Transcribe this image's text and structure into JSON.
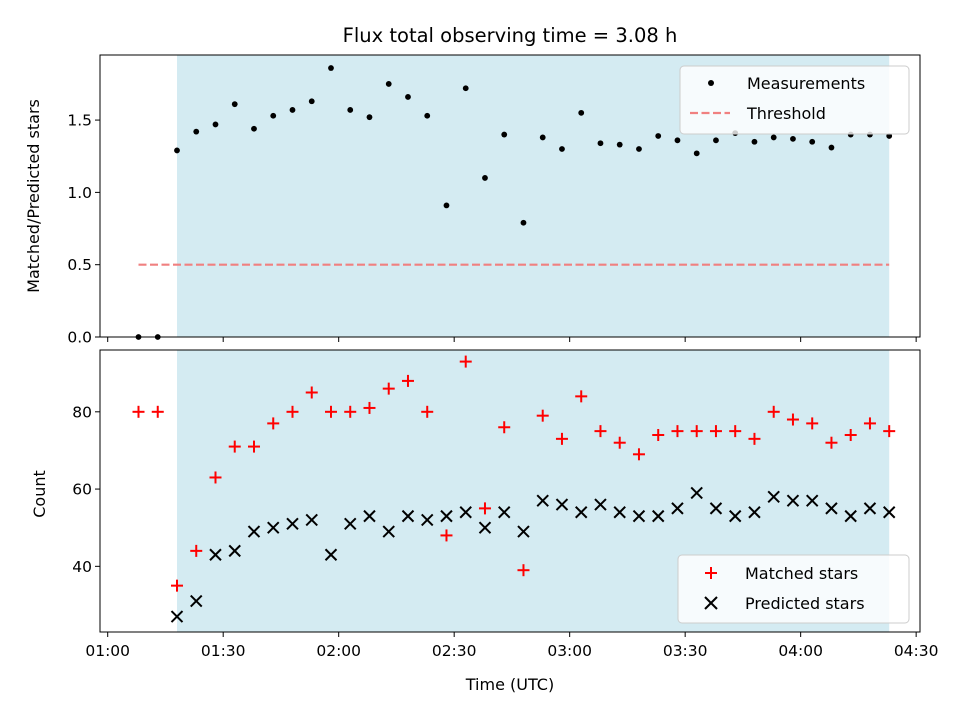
{
  "chart_data": [
    {
      "type": "scatter",
      "title": "Flux total observing time = 3.08 h",
      "xlabel": "",
      "ylabel": "Matched/Predicted stars",
      "xlim_minutes": [
        58,
        271
      ],
      "ylim": [
        0,
        1.95
      ],
      "yticks": [
        0.0,
        0.5,
        1.0,
        1.5
      ],
      "ytick_labels": [
        "0.0",
        "0.5",
        "1.0",
        "1.5"
      ],
      "xticks_minutes": [
        60,
        90,
        120,
        150,
        180,
        210,
        240,
        270
      ],
      "shaded_span_minutes": [
        78,
        263
      ],
      "shade_color": "#add8e6",
      "legend_position": "upper right",
      "series": [
        {
          "name": "Measurements",
          "marker": "dot",
          "color": "#000000",
          "x_minutes": [
            68,
            73,
            78,
            83,
            88,
            93,
            98,
            103,
            108,
            113,
            118,
            123,
            128,
            133,
            138,
            143,
            148,
            153,
            158,
            163,
            168,
            173,
            178,
            183,
            188,
            193,
            198,
            203,
            208,
            213,
            218,
            223,
            228,
            233,
            238,
            243,
            248,
            253,
            258,
            263
          ],
          "y": [
            0.0,
            0.0,
            1.29,
            1.42,
            1.47,
            1.61,
            1.44,
            1.53,
            1.57,
            1.63,
            1.86,
            1.57,
            1.52,
            1.75,
            1.66,
            1.53,
            0.91,
            1.72,
            1.1,
            1.4,
            0.79,
            1.38,
            1.3,
            1.55,
            1.34,
            1.33,
            1.3,
            1.39,
            1.36,
            1.27,
            1.36,
            1.41,
            1.35,
            1.38,
            1.37,
            1.35,
            1.31,
            1.4,
            1.4,
            1.39
          ]
        },
        {
          "name": "Threshold",
          "marker": "dashed-line",
          "color": "#f08080",
          "x_minutes": [
            68,
            263
          ],
          "y": [
            0.5,
            0.5
          ]
        }
      ]
    },
    {
      "type": "scatter",
      "title": "",
      "xlabel": "Time (UTC)",
      "ylabel": "Count",
      "xlim_minutes": [
        58,
        271
      ],
      "ylim": [
        23,
        96
      ],
      "yticks": [
        40,
        60,
        80
      ],
      "ytick_labels": [
        "40",
        "60",
        "80"
      ],
      "xticks_minutes": [
        60,
        90,
        120,
        150,
        180,
        210,
        240,
        270
      ],
      "xtick_labels": [
        "01:00",
        "01:30",
        "02:00",
        "02:30",
        "03:00",
        "03:30",
        "04:00",
        "04:30"
      ],
      "shaded_span_minutes": [
        78,
        263
      ],
      "shade_color": "#add8e6",
      "legend_position": "lower right",
      "series": [
        {
          "name": "Matched stars",
          "marker": "plus",
          "color": "#ff0000",
          "x_minutes": [
            68,
            73,
            78,
            83,
            88,
            93,
            98,
            103,
            108,
            113,
            118,
            123,
            128,
            133,
            138,
            143,
            148,
            153,
            158,
            163,
            168,
            173,
            178,
            183,
            188,
            193,
            198,
            203,
            208,
            213,
            218,
            223,
            228,
            233,
            238,
            243,
            248,
            253,
            258,
            263
          ],
          "y": [
            80,
            80,
            35,
            44,
            63,
            71,
            71,
            77,
            80,
            85,
            80,
            80,
            81,
            86,
            88,
            80,
            48,
            93,
            55,
            76,
            39,
            79,
            73,
            84,
            75,
            72,
            69,
            74,
            75,
            75,
            75,
            75,
            73,
            80,
            78,
            77,
            72,
            74,
            77,
            75
          ]
        },
        {
          "name": "Predicted stars",
          "marker": "x",
          "color": "#000000",
          "x_minutes": [
            78,
            83,
            88,
            93,
            98,
            103,
            108,
            113,
            118,
            123,
            128,
            133,
            138,
            143,
            148,
            153,
            158,
            163,
            168,
            173,
            178,
            183,
            188,
            193,
            198,
            203,
            208,
            213,
            218,
            223,
            228,
            233,
            238,
            243,
            248,
            253,
            258,
            263
          ],
          "y": [
            27,
            31,
            43,
            44,
            49,
            50,
            51,
            52,
            43,
            51,
            53,
            49,
            53,
            52,
            53,
            54,
            50,
            54,
            49,
            57,
            56,
            54,
            56,
            54,
            53,
            53,
            55,
            59,
            55,
            53,
            54,
            58,
            57,
            57,
            55,
            53,
            55,
            54
          ]
        }
      ]
    }
  ]
}
